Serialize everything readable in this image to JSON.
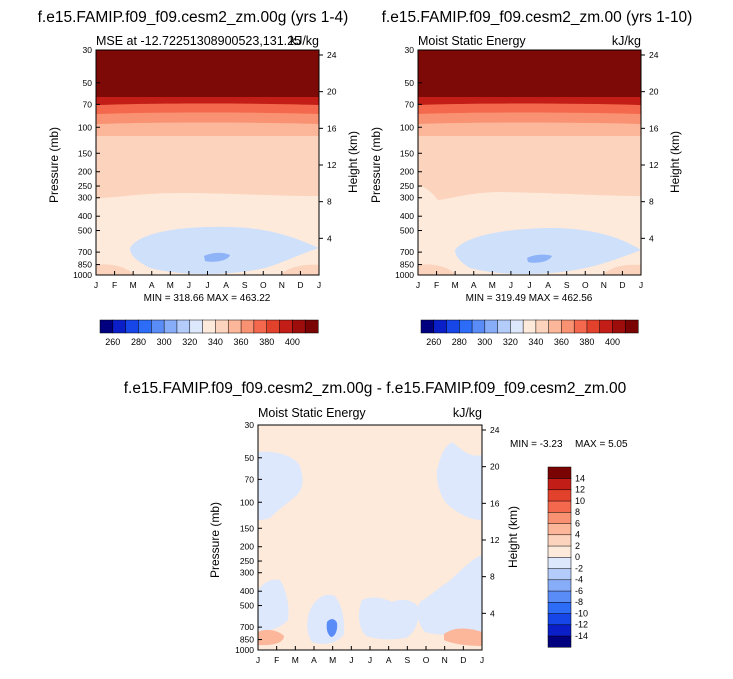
{
  "chart_data": [
    {
      "type": "heatmap",
      "title": "f.e15.FAMIP.f09_f09.cesm2_zm.00g (yrs 1-4)",
      "subtitle_left": "MSE at -12.72251308900523,131.25",
      "subtitle_right": "kJ/kg",
      "xlabel": "",
      "ylabel": "Pressure (mb)",
      "ylabel_right": "Height (km)",
      "x_ticks": [
        "J",
        "F",
        "M",
        "A",
        "M",
        "J",
        "J",
        "A",
        "S",
        "O",
        "N",
        "D",
        "J"
      ],
      "y_ticks": [
        "30",
        "50",
        "70",
        "100",
        "150",
        "200",
        "250",
        "300",
        "400",
        "500",
        "700",
        "850",
        "1000"
      ],
      "y_ticks_right": [
        "24",
        "20",
        "16",
        "12",
        "8",
        "4"
      ],
      "stats": "MIN = 318.66 MAX = 463.22",
      "value_range": [
        318.66,
        463.22
      ],
      "zones": [
        {
          "level": "≥400",
          "pressure_range": [
            30,
            50
          ]
        },
        {
          "level": "340–380",
          "pressure_range": [
            50,
            100
          ]
        },
        {
          "level": "340–350",
          "pressure_range": [
            100,
            300
          ]
        },
        {
          "level": "330–340",
          "pressure_range": [
            300,
            1000
          ]
        },
        {
          "level": "320–330",
          "pressure_range": [
            500,
            850
          ]
        }
      ]
    },
    {
      "type": "heatmap",
      "title": "f.e15.FAMIP.f09_f09.cesm2_zm.00 (yrs 1-10)",
      "subtitle_left": "Moist Static Energy",
      "subtitle_right": "kJ/kg",
      "xlabel": "",
      "ylabel": "Pressure (mb)",
      "ylabel_right": "Height (km)",
      "x_ticks": [
        "J",
        "F",
        "M",
        "A",
        "M",
        "J",
        "J",
        "A",
        "S",
        "O",
        "N",
        "D",
        "J"
      ],
      "y_ticks": [
        "30",
        "50",
        "70",
        "100",
        "150",
        "200",
        "250",
        "300",
        "400",
        "500",
        "700",
        "850",
        "1000"
      ],
      "y_ticks_right": [
        "24",
        "20",
        "16",
        "12",
        "8",
        "4"
      ],
      "stats": "MIN = 319.49 MAX = 462.56",
      "value_range": [
        319.49,
        462.56
      ],
      "zones": [
        {
          "level": "≥400",
          "pressure_range": [
            30,
            50
          ]
        },
        {
          "level": "340–380",
          "pressure_range": [
            50,
            100
          ]
        },
        {
          "level": "340–350",
          "pressure_range": [
            100,
            300
          ]
        },
        {
          "level": "330–340",
          "pressure_range": [
            300,
            1000
          ]
        },
        {
          "level": "320–330",
          "pressure_range": [
            500,
            850
          ]
        }
      ]
    },
    {
      "type": "heatmap",
      "title": "f.e15.FAMIP.f09_f09.cesm2_zm.00g - f.e15.FAMIP.f09_f09.cesm2_zm.00",
      "subtitle_left": "Moist Static Energy",
      "subtitle_right": "kJ/kg",
      "xlabel": "",
      "ylabel": "Pressure (mb)",
      "ylabel_right": "Height (km)",
      "x_ticks": [
        "J",
        "F",
        "M",
        "A",
        "M",
        "J",
        "J",
        "A",
        "S",
        "O",
        "N",
        "D",
        "J"
      ],
      "y_ticks": [
        "30",
        "50",
        "70",
        "100",
        "150",
        "200",
        "250",
        "300",
        "400",
        "500",
        "700",
        "850",
        "1000"
      ],
      "y_ticks_right": [
        "24",
        "20",
        "16",
        "12",
        "8",
        "4"
      ],
      "stats_min_label": "MIN = -3.23",
      "stats_max_label": "MAX =  5.05",
      "value_range": [
        -3.23,
        5.05
      ]
    }
  ],
  "colorbars": {
    "absolute": {
      "colors": [
        "#01007f",
        "#0a1fc8",
        "#1746e8",
        "#2d6cf6",
        "#5a8cf8",
        "#87acf8",
        "#b4ccfa",
        "#dde8fc",
        "#fdeadb",
        "#fcd3bc",
        "#fcb79b",
        "#f99273",
        "#f4694d",
        "#e2412c",
        "#c21d16",
        "#9c0d0c",
        "#7a0403"
      ],
      "labels": [
        "260",
        "280",
        "300",
        "320",
        "340",
        "360",
        "380",
        "400"
      ]
    },
    "difference": {
      "colors": [
        "#01007f",
        "#0a1fc8",
        "#1746e8",
        "#2d6cf6",
        "#5a8cf8",
        "#87acf8",
        "#b4ccfa",
        "#dde8fc",
        "#fdeadb",
        "#fcd3bc",
        "#fcb79b",
        "#f99273",
        "#f4694d",
        "#e2412c",
        "#c21d16",
        "#7a0403"
      ],
      "labels": [
        "-14",
        "-12",
        "-10",
        "-8",
        "-6",
        "-4",
        "-2",
        "0",
        "2",
        "4",
        "6",
        "8",
        "10",
        "12",
        "14"
      ]
    }
  },
  "colors": {
    "top_band": "#7d0a06",
    "band_50": "#c21d16",
    "band_60": "#e2412c",
    "band_70": "#f4694d",
    "band_85": "#f99273",
    "band_upper": "#fcd3bc",
    "lower_trop": "#fdeadb",
    "low_blue": "#cfe0fb",
    "low_blue_core": "#8fb3f7",
    "diff_pos": "#fdeadb",
    "diff_neg": "#dde8fc",
    "diff_neg2": "#b4ccfa",
    "diff_neg3": "#5a8cf8",
    "diff_pos2": "#fcd3bc",
    "diff_pos3": "#fcb79b"
  }
}
